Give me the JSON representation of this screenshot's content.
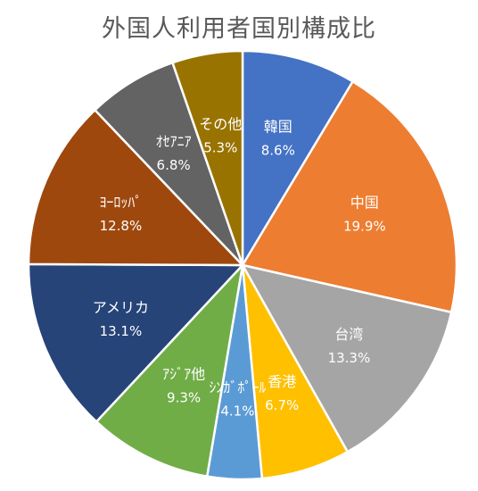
{
  "chart_data": {
    "type": "pie",
    "title": "外国人利用者国別構成比",
    "start_angle_deg": 0,
    "direction": "clockwise",
    "slices": [
      {
        "label": "韓国",
        "value": 8.6,
        "value_label": "8.6%",
        "color": "#4472C4"
      },
      {
        "label": "中国",
        "value": 19.9,
        "value_label": "19.9%",
        "color": "#ED7D31"
      },
      {
        "label": "台湾",
        "value": 13.3,
        "value_label": "13.3%",
        "color": "#A5A5A5"
      },
      {
        "label": "香港",
        "value": 6.7,
        "value_label": "6.7%",
        "color": "#FFC000"
      },
      {
        "label": "ｼﾝｶﾞﾎﾟｰﾙ",
        "value": 4.1,
        "value_label": "4.1%",
        "color": "#5B9BD5"
      },
      {
        "label": "ｱｼﾞｱ他",
        "value": 9.3,
        "value_label": "9.3%",
        "color": "#70AD47"
      },
      {
        "label": "アメリカ",
        "value": 13.1,
        "value_label": "13.1%",
        "color": "#264478"
      },
      {
        "label": "ﾖｰﾛｯﾊﾟ",
        "value": 12.8,
        "value_label": "12.8%",
        "color": "#9E480E"
      },
      {
        "label": "ｵｾｱﾆｱ",
        "value": 6.8,
        "value_label": "6.8%",
        "color": "#636363"
      },
      {
        "label": "その他",
        "value": 5.3,
        "value_label": "5.3%",
        "color": "#997300"
      }
    ],
    "legend": "none"
  }
}
